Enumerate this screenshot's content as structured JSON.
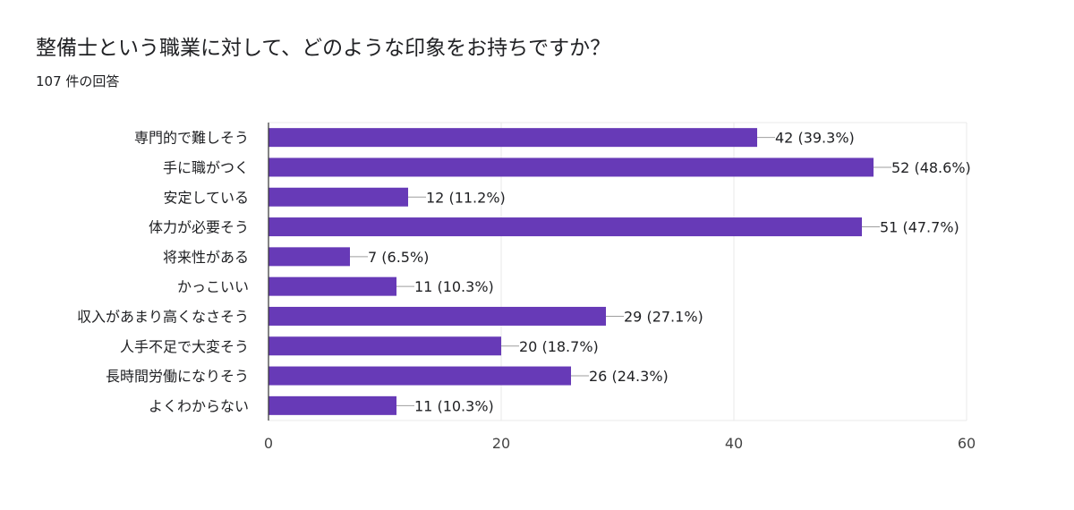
{
  "header": {
    "title": "整備士という職業に対して、どのような印象をお持ちですか？",
    "response_count": "107 件の回答"
  },
  "chart_data": {
    "type": "bar",
    "orientation": "horizontal",
    "title": "",
    "xlabel": "",
    "ylabel": "",
    "categories": [
      "専門的で難しそう",
      "手に職がつく",
      "安定している",
      "体力が必要そう",
      "将来性がある",
      "かっこいい",
      "収入があまり高くなさそう",
      "人手不足で大変そう",
      "長時間労働になりそう",
      "よくわからない"
    ],
    "values": [
      42,
      52,
      12,
      51,
      7,
      11,
      29,
      20,
      26,
      11
    ],
    "value_labels": [
      "42 (39.3%)",
      "52 (48.6%)",
      "12 (11.2%)",
      "51 (47.7%)",
      "7 (6.5%)",
      "11 (10.3%)",
      "29 (27.1%)",
      "20 (18.7%)",
      "26 (24.3%)",
      "11 (10.3%)"
    ],
    "xlim": [
      0,
      60
    ],
    "xticks": [
      0,
      20,
      40,
      60
    ],
    "xtick_labels": [
      "0",
      "20",
      "40",
      "60"
    ],
    "grid": true,
    "bar_color": "#673ab7"
  }
}
